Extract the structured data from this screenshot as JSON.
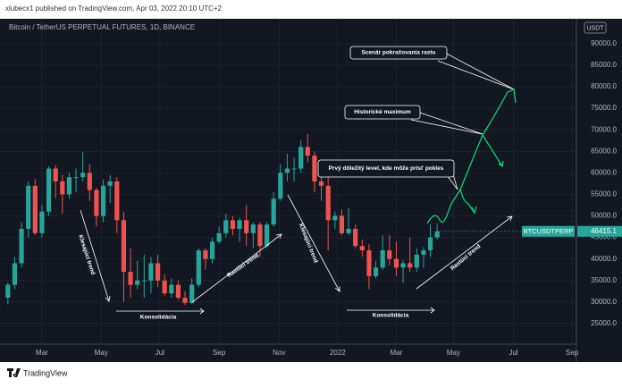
{
  "header": {
    "publisher": "xlubecx1 published on TradingView.com, Apr 03, 2022 20:10 UTC+2"
  },
  "footer": {
    "brand": "TradingView"
  },
  "chart_data": {
    "type": "candlestick",
    "title": "Bitcoin / TetherUS PERPETUAL FUTURES, 1D, BINANCE",
    "currency": "USDT",
    "symbol": "BTCUSDTPERP",
    "up_color": "#26a69a",
    "down_color": "#ef5350",
    "grid": true,
    "open": [
      31000,
      34000,
      39000,
      47000,
      57000,
      46000,
      51000,
      61000,
      58000,
      55000,
      59000,
      59000,
      60000,
      56000,
      50000,
      57000,
      58000,
      49000,
      37000,
      34000,
      35000,
      35000,
      39000,
      35000,
      32000,
      34000,
      31000,
      29800,
      34000,
      42000,
      40000,
      44000,
      46000,
      49000,
      47000,
      49000,
      46000,
      48000,
      43000,
      48000,
      54000,
      60000,
      61000,
      61000,
      66000,
      64000,
      58000,
      57000,
      49000,
      50000,
      46000,
      47000,
      43000,
      42000,
      36000,
      38000,
      42000,
      40000,
      38000,
      39000,
      38000,
      41000,
      42000,
      45000
    ],
    "high": [
      34500,
      40500,
      48500,
      58000,
      58500,
      52500,
      61500,
      61800,
      59500,
      60000,
      61000,
      64800,
      62000,
      56500,
      58500,
      59500,
      59000,
      51000,
      42500,
      39500,
      41000,
      40500,
      41000,
      36500,
      35500,
      35000,
      32500,
      35500,
      42500,
      42500,
      45000,
      47500,
      50500,
      50000,
      49500,
      52500,
      48500,
      48500,
      48500,
      55500,
      62000,
      64500,
      63500,
      67500,
      69000,
      65000,
      59500,
      59000,
      51000,
      51500,
      51800,
      48000,
      44500,
      43500,
      39500,
      45500,
      45500,
      44000,
      39700,
      45000,
      42500,
      42800,
      48000,
      48200
    ],
    "low": [
      29500,
      33000,
      38000,
      45000,
      45500,
      45000,
      50000,
      54000,
      50500,
      54000,
      55500,
      58000,
      53500,
      47500,
      48500,
      53000,
      46000,
      30000,
      31000,
      33000,
      31000,
      32000,
      33500,
      31500,
      31000,
      30500,
      29300,
      29500,
      33500,
      37500,
      39000,
      43500,
      45000,
      45500,
      44000,
      43000,
      42500,
      40500,
      42500,
      47500,
      53500,
      58000,
      58000,
      60000,
      62500,
      55500,
      53500,
      42000,
      47000,
      45500,
      45500,
      42500,
      40500,
      33000,
      35500,
      37500,
      38500,
      36000,
      34500,
      37000,
      37000,
      38000,
      40500,
      44500
    ],
    "close": [
      34000,
      39000,
      47000,
      57000,
      46000,
      51000,
      61000,
      58000,
      55000,
      59000,
      59000,
      60000,
      56000,
      50000,
      57000,
      58000,
      49000,
      37000,
      34000,
      35000,
      35000,
      39000,
      35000,
      32000,
      34000,
      31000,
      29800,
      34000,
      42000,
      40000,
      44000,
      46000,
      49000,
      47000,
      49000,
      46000,
      48000,
      43000,
      48000,
      54000,
      60000,
      61000,
      61000,
      66000,
      64000,
      58000,
      57000,
      49000,
      50000,
      46000,
      47000,
      43000,
      42000,
      36000,
      38000,
      42000,
      40000,
      38000,
      39000,
      38000,
      41000,
      42000,
      45000,
      46415.1
    ],
    "ylim": [
      20200,
      96000
    ],
    "yticks": [
      {
        "value": 25000,
        "label": "25000.0"
      },
      {
        "value": 30000,
        "label": "30000.0"
      },
      {
        "value": 35000,
        "label": "35000.0"
      },
      {
        "value": 40000,
        "label": "40000.0"
      },
      {
        "value": 45000,
        "label": "45000.0"
      },
      {
        "value": 50000,
        "label": "50000.0"
      },
      {
        "value": 55000,
        "label": "55000.0"
      },
      {
        "value": 60000,
        "label": "60000.0"
      },
      {
        "value": 65000,
        "label": "65000.0"
      },
      {
        "value": 70000,
        "label": "70000.0"
      },
      {
        "value": 75000,
        "label": "75000.0"
      },
      {
        "value": 80000,
        "label": "80000.0"
      },
      {
        "value": 85000,
        "label": "85000.0"
      },
      {
        "value": 90000,
        "label": "90000.0"
      }
    ],
    "xlim": [
      0,
      84.2
    ],
    "xticks": [
      {
        "value": 5.5,
        "label": "Mar"
      },
      {
        "value": 14.2,
        "label": "May"
      },
      {
        "value": 22.8,
        "label": "Jul"
      },
      {
        "value": 31.5,
        "label": "Sep"
      },
      {
        "value": 40.3,
        "label": "Nov"
      },
      {
        "value": 48.9,
        "label": "2022"
      },
      {
        "value": 57.5,
        "label": "Mar"
      },
      {
        "value": 65.9,
        "label": "May"
      },
      {
        "value": 74.7,
        "label": "Jul"
      },
      {
        "value": 83.3,
        "label": "Sep"
      }
    ],
    "annotations": [
      "Scenár pokračovania rastu",
      "Historické maximum",
      "Prvý dôležitý level, kde môže prísť pokles",
      "Klesajúci trend",
      "Konsolidácia",
      "Rastúci trend",
      "Klesajúci trend",
      "Konsolidácia",
      "Rastúci trend"
    ]
  }
}
